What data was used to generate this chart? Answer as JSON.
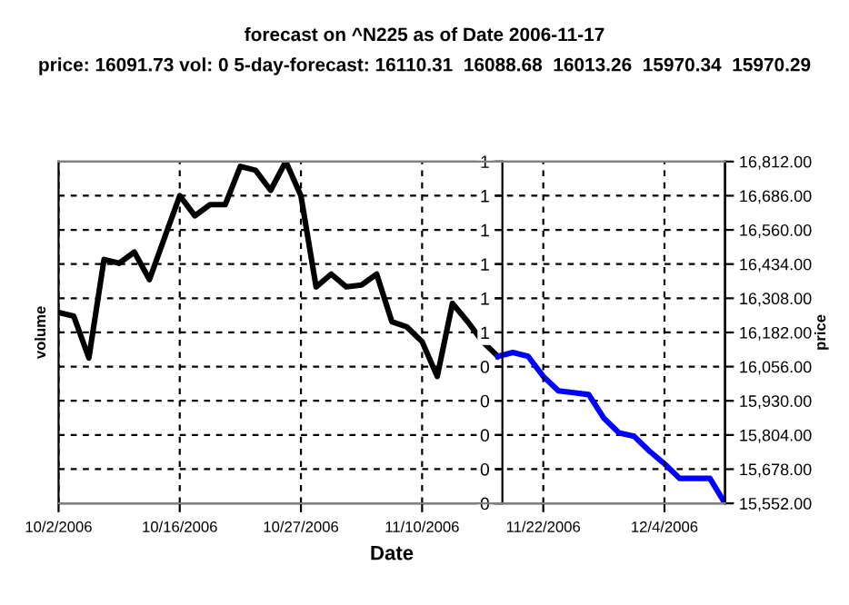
{
  "chart_data": {
    "type": "line",
    "title": "forecast on ^N225 as of Date 2006-11-17",
    "subtitle": "price: 16091.73 vol: 0 5-day-forecast: 16110.31  16088.68  16013.26  15970.34  15970.29",
    "xlabel": "Date",
    "ylabel": "volume",
    "y2label": "price",
    "categories": [
      "10/2/2006",
      null,
      null,
      null,
      null,
      null,
      null,
      null,
      "10/16/2006",
      null,
      null,
      null,
      null,
      null,
      null,
      null,
      "10/27/2006",
      null,
      null,
      null,
      null,
      null,
      null,
      null,
      "11/10/2006",
      null,
      null,
      null,
      null,
      null,
      null,
      null,
      "11/22/2006",
      null,
      null,
      null,
      null,
      null,
      null,
      null,
      "12/4/2006",
      null,
      null,
      null,
      null
    ],
    "series": [
      {
        "color": "#000000",
        "axis": "y2",
        "values": [
          16256,
          16242,
          16088,
          16451,
          16437,
          16478,
          16377,
          16532,
          16686,
          16612,
          16653,
          16653,
          16794,
          16780,
          16706,
          16812,
          16686,
          16350,
          16397,
          16350,
          16357,
          16397,
          16222,
          16202,
          16148,
          16020,
          16289,
          16222,
          16148,
          16094,
          null,
          null,
          null,
          null,
          null,
          null,
          null,
          null,
          null,
          null,
          null,
          null,
          null,
          null,
          null
        ]
      },
      {
        "color": "#0000ff",
        "axis": "y2",
        "values": [
          null,
          null,
          null,
          null,
          null,
          null,
          null,
          null,
          null,
          null,
          null,
          null,
          null,
          null,
          null,
          null,
          null,
          null,
          null,
          null,
          null,
          null,
          null,
          null,
          null,
          null,
          null,
          null,
          null,
          16094,
          16108,
          16094,
          16020,
          15967,
          15960,
          15953,
          15866,
          15812,
          15799,
          15745,
          15698,
          15644,
          15644,
          15644,
          15552
        ]
      }
    ],
    "ylim": [
      0,
      1
    ],
    "yticks": [
      {
        "value": 0,
        "label": "0"
      },
      {
        "value": 0.1,
        "label": "0"
      },
      {
        "value": 0.2,
        "label": "0"
      },
      {
        "value": 0.3,
        "label": "0"
      },
      {
        "value": 0.4,
        "label": "0"
      },
      {
        "value": 0.5,
        "label": "1"
      },
      {
        "value": 0.6,
        "label": "1"
      },
      {
        "value": 0.7,
        "label": "1"
      },
      {
        "value": 0.8,
        "label": "1"
      },
      {
        "value": 0.9,
        "label": "1"
      },
      {
        "value": 1,
        "label": "1"
      }
    ],
    "y2lim": [
      15552,
      16812
    ],
    "y2ticks": [
      {
        "value": 15552,
        "label": "15,552.00"
      },
      {
        "value": 15678,
        "label": "15,678.00"
      },
      {
        "value": 15804,
        "label": "15,804.00"
      },
      {
        "value": 15930,
        "label": "15,930.00"
      },
      {
        "value": 16056,
        "label": "16,056.00"
      },
      {
        "value": 16182,
        "label": "16,182.00"
      },
      {
        "value": 16308,
        "label": "16,308.00"
      },
      {
        "value": 16434,
        "label": "16,434.00"
      },
      {
        "value": 16560,
        "label": "16,560.00"
      },
      {
        "value": 16686,
        "label": "16,686.00"
      },
      {
        "value": 16812,
        "label": "16,812.00"
      }
    ],
    "grid": true,
    "line_style": "solid",
    "marker": "none"
  }
}
